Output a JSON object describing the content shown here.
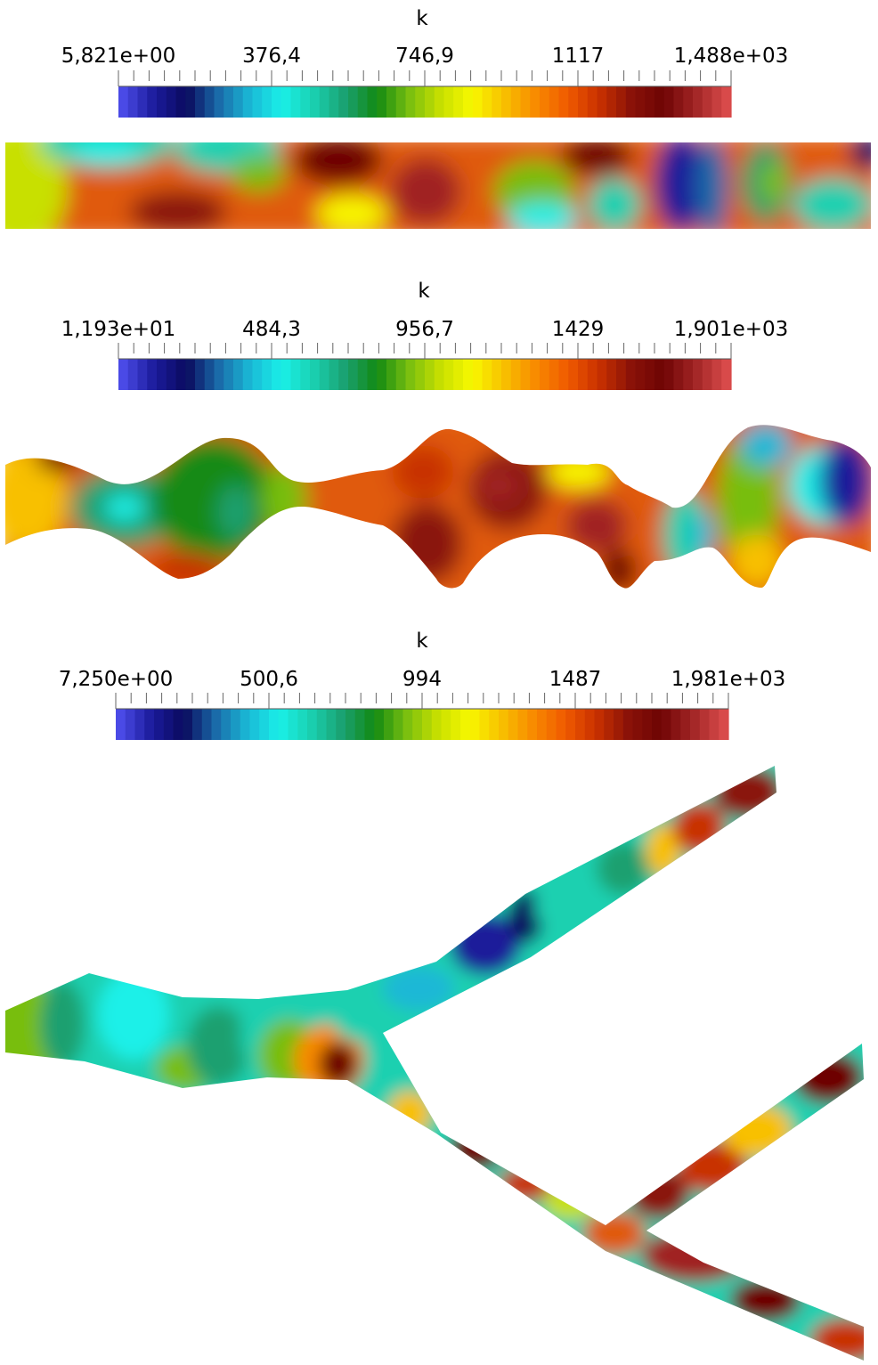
{
  "colormap": [
    "#4a4ae6",
    "#1a1a9a",
    "#0a0a5e",
    "#1a6aa8",
    "#1ab8d6",
    "#1af0e8",
    "#1ad0b0",
    "#1aa070",
    "#128a12",
    "#78be10",
    "#c8e000",
    "#f8f800",
    "#f8c000",
    "#f88a00",
    "#f05a00",
    "#c83000",
    "#8a1208",
    "#6e0404",
    "#a02424",
    "#d84a4a"
  ],
  "panels": [
    {
      "title": "k",
      "colorbar_labels": [
        "5,821e+00",
        "376,4",
        "746,9",
        "1117",
        "1,488e+03"
      ]
    },
    {
      "title": "k",
      "colorbar_labels": [
        "1,193e+01",
        "484,3",
        "956,7",
        "1429",
        "1,901e+03"
      ]
    },
    {
      "title": "k",
      "colorbar_labels": [
        "7,250e+00",
        "500,6",
        "994",
        "1487",
        "1,981e+03"
      ]
    }
  ]
}
